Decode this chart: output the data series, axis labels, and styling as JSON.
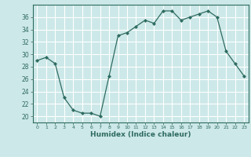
{
  "x": [
    0,
    1,
    2,
    3,
    4,
    5,
    6,
    7,
    8,
    9,
    10,
    11,
    12,
    13,
    14,
    15,
    16,
    17,
    18,
    19,
    20,
    21,
    22,
    23
  ],
  "y": [
    29,
    29.5,
    28.5,
    23,
    21,
    20.5,
    20.5,
    20,
    26.5,
    33,
    33.5,
    34.5,
    35.5,
    35,
    37,
    37,
    35.5,
    36,
    36.5,
    37,
    36,
    30.5,
    28.5,
    26.5
  ],
  "line_color": "#2e6b60",
  "marker_color": "#2e6b60",
  "bg_color": "#cde8e8",
  "grid_color": "#ffffff",
  "xlabel": "Humidex (Indice chaleur)",
  "ylim": [
    19,
    38
  ],
  "xlim": [
    -0.5,
    23.5
  ],
  "yticks": [
    20,
    22,
    24,
    26,
    28,
    30,
    32,
    34,
    36
  ],
  "xticks": [
    0,
    1,
    2,
    3,
    4,
    5,
    6,
    7,
    8,
    9,
    10,
    11,
    12,
    13,
    14,
    15,
    16,
    17,
    18,
    19,
    20,
    21,
    22,
    23
  ]
}
